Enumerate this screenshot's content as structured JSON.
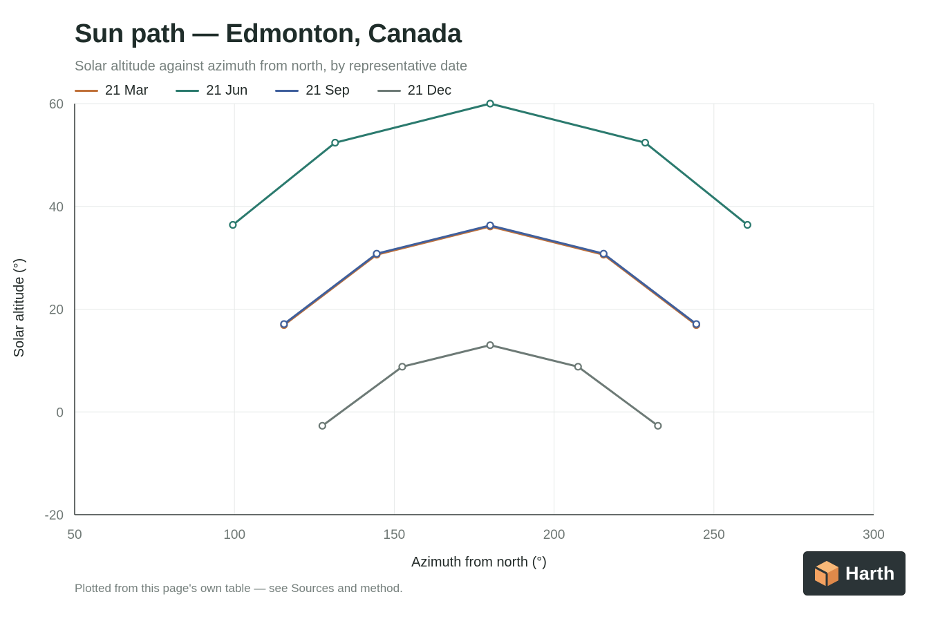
{
  "title": "Sun path — Edmonton, Canada",
  "subtitle": "Solar altitude against azimuth from north, by representative date",
  "footnote": "Plotted from this page's own table — see Sources and method.",
  "logo": {
    "text": "Harth",
    "icon": "cube-logo-icon",
    "colors": [
      "#f4a261",
      "#f8b878",
      "#e0894a"
    ]
  },
  "chart_data": {
    "type": "line",
    "xlabel": "Azimuth from north (°)",
    "ylabel": "Solar altitude (°)",
    "xlim": [
      50,
      300
    ],
    "ylim": [
      -20,
      60
    ],
    "xticks": [
      50,
      100,
      150,
      200,
      250,
      300
    ],
    "yticks": [
      -20,
      0,
      20,
      40,
      60
    ],
    "grid": true,
    "legend": "top-left",
    "series": [
      {
        "name": "21 Mar",
        "color": "#c0713a",
        "x": [
          115.5,
          144.5,
          180,
          215.5,
          244.5
        ],
        "y": [
          16.9,
          30.6,
          36.1,
          30.6,
          16.9
        ]
      },
      {
        "name": "21 Jun",
        "color": "#2b7a6e",
        "x": [
          99.5,
          131.5,
          180,
          228.5,
          260.5
        ],
        "y": [
          36.4,
          52.4,
          60.0,
          52.4,
          36.4
        ]
      },
      {
        "name": "21 Sep",
        "color": "#3f5f9c",
        "x": [
          115.5,
          144.5,
          180,
          215.5,
          244.5
        ],
        "y": [
          17.1,
          30.8,
          36.3,
          30.8,
          17.1
        ]
      },
      {
        "name": "21 Dec",
        "color": "#6d7a76",
        "x": [
          127.5,
          152.5,
          180,
          207.5,
          232.5
        ],
        "y": [
          -2.7,
          8.8,
          13.0,
          8.8,
          -2.7
        ]
      }
    ]
  }
}
